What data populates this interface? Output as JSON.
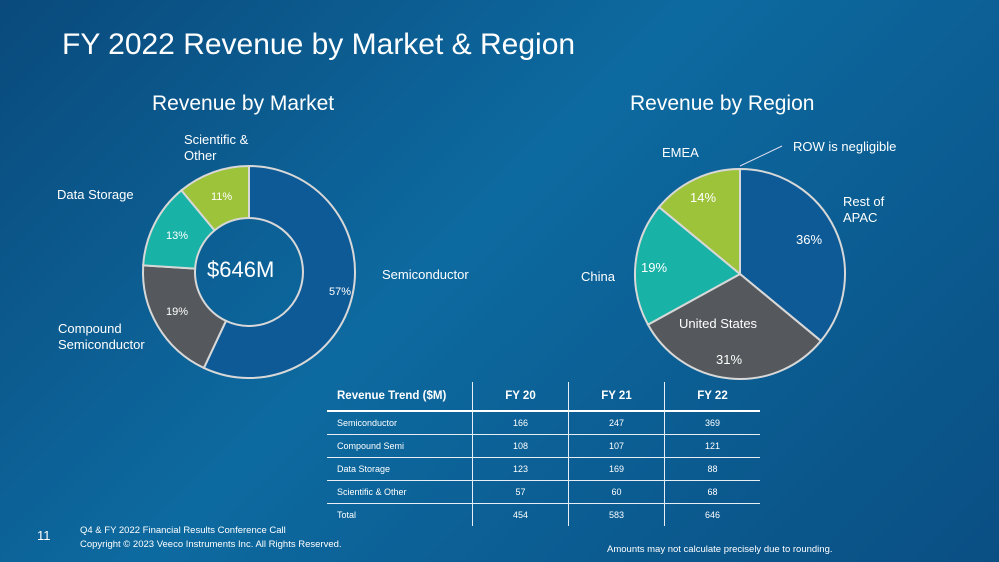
{
  "title": "FY 2022 Revenue by Market & Region",
  "colors": {
    "blue": "#0e5a96",
    "gray": "#55585c",
    "teal": "#18b2a6",
    "lime": "#9dc33b"
  },
  "chart_data": [
    {
      "type": "pie",
      "variant": "donut",
      "title": "Revenue by Market",
      "center_label": "$646M",
      "slices": [
        {
          "name": "Semiconductor",
          "value": 57,
          "label": "57%",
          "color": "#0e5a96"
        },
        {
          "name": "Compound Semiconductor",
          "value": 19,
          "label": "19%",
          "color": "#55585c"
        },
        {
          "name": "Data Storage",
          "value": 13,
          "label": "13%",
          "color": "#18b2a6"
        },
        {
          "name": "Scientific & Other",
          "value": 11,
          "label": "11%",
          "color": "#9dc33b"
        }
      ]
    },
    {
      "type": "pie",
      "title": "Revenue by Region",
      "annotation": "ROW is negligible",
      "slices": [
        {
          "name": "Rest of APAC",
          "value": 36,
          "label": "36%",
          "color": "#0e5a96"
        },
        {
          "name": "United States",
          "value": 31,
          "label": "31%",
          "color": "#55585c"
        },
        {
          "name": "China",
          "value": 19,
          "label": "19%",
          "color": "#18b2a6"
        },
        {
          "name": "EMEA",
          "value": 14,
          "label": "14%",
          "color": "#9dc33b"
        }
      ]
    },
    {
      "type": "table",
      "headers": [
        "Revenue Trend ($M)",
        "FY 20",
        "FY 21",
        "FY 22"
      ],
      "rows": [
        [
          "Semiconductor",
          "166",
          "247",
          "369"
        ],
        [
          "Compound Semi",
          "108",
          "107",
          "121"
        ],
        [
          "Data Storage",
          "123",
          "169",
          "88"
        ],
        [
          "Scientific & Other",
          "57",
          "60",
          "68"
        ],
        [
          "Total",
          "454",
          "583",
          "646"
        ]
      ]
    }
  ],
  "labels": {
    "semi": "Semiconductor",
    "compound1": "Compound",
    "compound2": "Semiconductor",
    "storage": "Data Storage",
    "sci1": "Scientific &",
    "sci2": "Other",
    "apac1": "Rest of",
    "apac2": "APAC",
    "us": "United States",
    "china": "China",
    "emea": "EMEA"
  },
  "footer": {
    "page": "11",
    "line1": "Q4 & FY 2022 Financial Results Conference Call",
    "line2": "Copyright © 2023 Veeco Instruments Inc. All Rights Reserved.",
    "note": "Amounts may not calculate precisely due to rounding."
  }
}
